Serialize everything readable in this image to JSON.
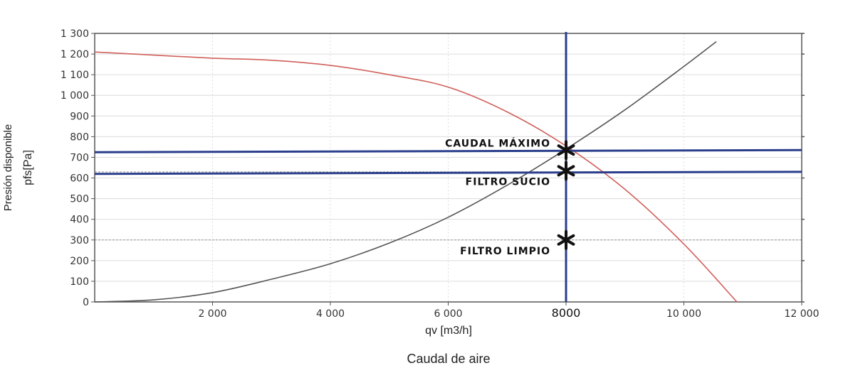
{
  "chart_data": {
    "type": "line",
    "xlabel": "qv [m3/h]",
    "ylabel": "Presión disponible",
    "ylabel_unit": "pfs[Pa]",
    "caption": "Caudal de aire",
    "xlim": [
      0,
      12000
    ],
    "ylim": [
      0,
      1300
    ],
    "x_ticks": [
      {
        "value": 2000,
        "label": "2 000"
      },
      {
        "value": 4000,
        "label": "4 000"
      },
      {
        "value": 6000,
        "label": "6 000"
      },
      {
        "value": 8000,
        "label": "8000"
      },
      {
        "value": 10000,
        "label": "10 000"
      },
      {
        "value": 12000,
        "label": "12 000"
      }
    ],
    "y_ticks": [
      {
        "value": 0,
        "label": "0"
      },
      {
        "value": 100,
        "label": "100"
      },
      {
        "value": 200,
        "label": "200"
      },
      {
        "value": 300,
        "label": "300"
      },
      {
        "value": 400,
        "label": "400"
      },
      {
        "value": 500,
        "label": "500"
      },
      {
        "value": 600,
        "label": "600"
      },
      {
        "value": 700,
        "label": "700"
      },
      {
        "value": 800,
        "label": "800"
      },
      {
        "value": 900,
        "label": "900"
      },
      {
        "value": 1000,
        "label": "1 000"
      },
      {
        "value": 1100,
        "label": "1 100"
      },
      {
        "value": 1200,
        "label": "1 200"
      },
      {
        "value": 1300,
        "label": "1 300"
      }
    ],
    "grid": true,
    "series": [
      {
        "color": "#d0605a",
        "x": [
          0,
          1000,
          2000,
          3000,
          4000,
          5000,
          6000,
          7000,
          8000,
          9000,
          10000,
          10900
        ],
        "y": [
          1210,
          1195,
          1180,
          1170,
          1145,
          1100,
          1040,
          920,
          755,
          545,
          280,
          0
        ]
      },
      {
        "color": "#555555",
        "x": [
          0,
          1000,
          2000,
          3000,
          4000,
          5000,
          6000,
          7000,
          8000,
          9000,
          10000,
          10550
        ],
        "y": [
          0,
          10,
          45,
          110,
          185,
          285,
          410,
          565,
          740,
          930,
          1140,
          1260
        ]
      }
    ],
    "guide_lines": {
      "color": "#2a3e8c",
      "vertical_x": 8000,
      "horizontal": [
        {
          "y_left": 725,
          "y_right": 735
        },
        {
          "y_left": 620,
          "y_right": 630
        }
      ]
    },
    "reference_lines": [
      630,
      300
    ],
    "annotations": [
      {
        "label": "CAUDAL MÁXIMO",
        "x": 8000,
        "y": 735
      },
      {
        "label": "FILTRO SUCIO",
        "x": 8000,
        "y": 635
      },
      {
        "label": "FILTRO LIMPIO",
        "x": 8000,
        "y": 300
      }
    ]
  }
}
